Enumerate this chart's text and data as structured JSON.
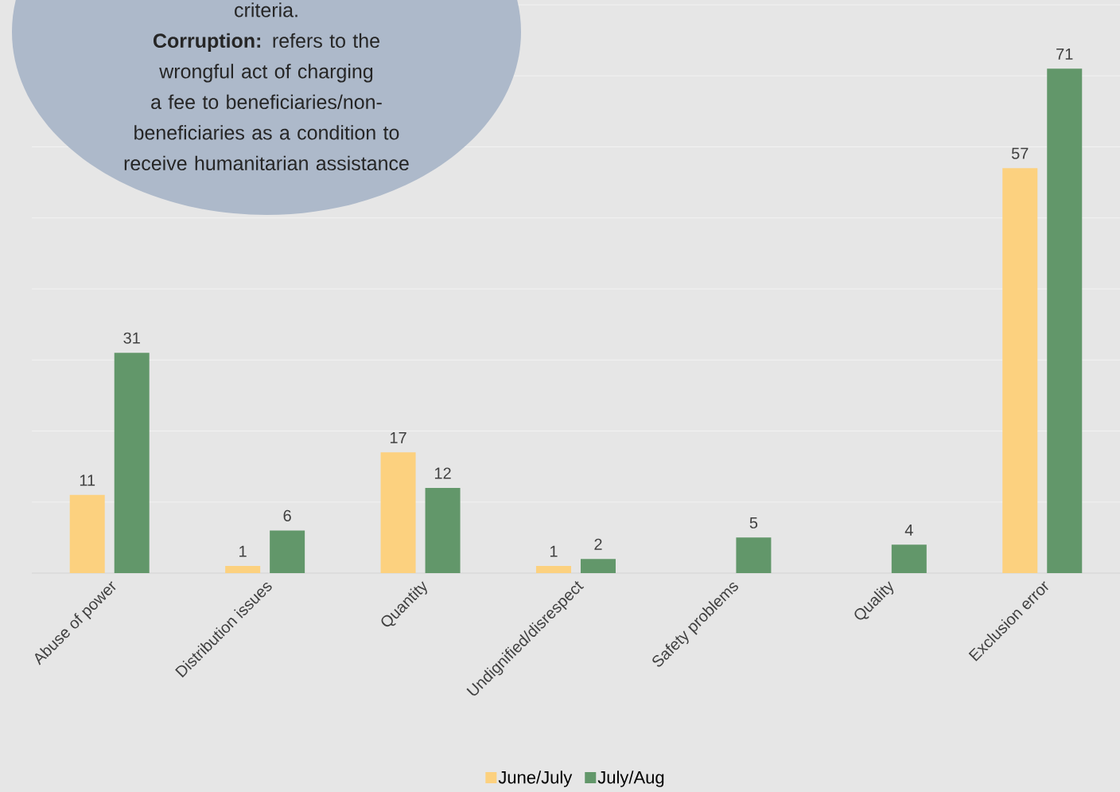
{
  "chart_data": {
    "type": "bar",
    "categories": [
      "Abuse of power",
      "Distribution issues",
      "Quantity",
      "Undignified/disrespect",
      "Safety problems",
      "Quality",
      "Exclusion error"
    ],
    "series": [
      {
        "name": "June/July",
        "color": "#fcd17f",
        "values": [
          11,
          1,
          17,
          1,
          null,
          null,
          57
        ]
      },
      {
        "name": "July/Aug",
        "color": "#62976a",
        "values": [
          31,
          6,
          12,
          2,
          5,
          4,
          71
        ]
      }
    ],
    "ylim": [
      0,
      80
    ],
    "yticks": [
      0,
      10,
      20,
      30,
      40,
      50,
      60,
      70,
      80
    ],
    "tick_labels": "x",
    "grid": "y",
    "legend": "bottom",
    "data_labels": true,
    "annotations": [
      "criteria.",
      "**Corruption:** refers to the wrongful act of charging a fee to beneficiaries/non-beneficiaries as a condition to receive humanitarian assistance"
    ]
  }
}
